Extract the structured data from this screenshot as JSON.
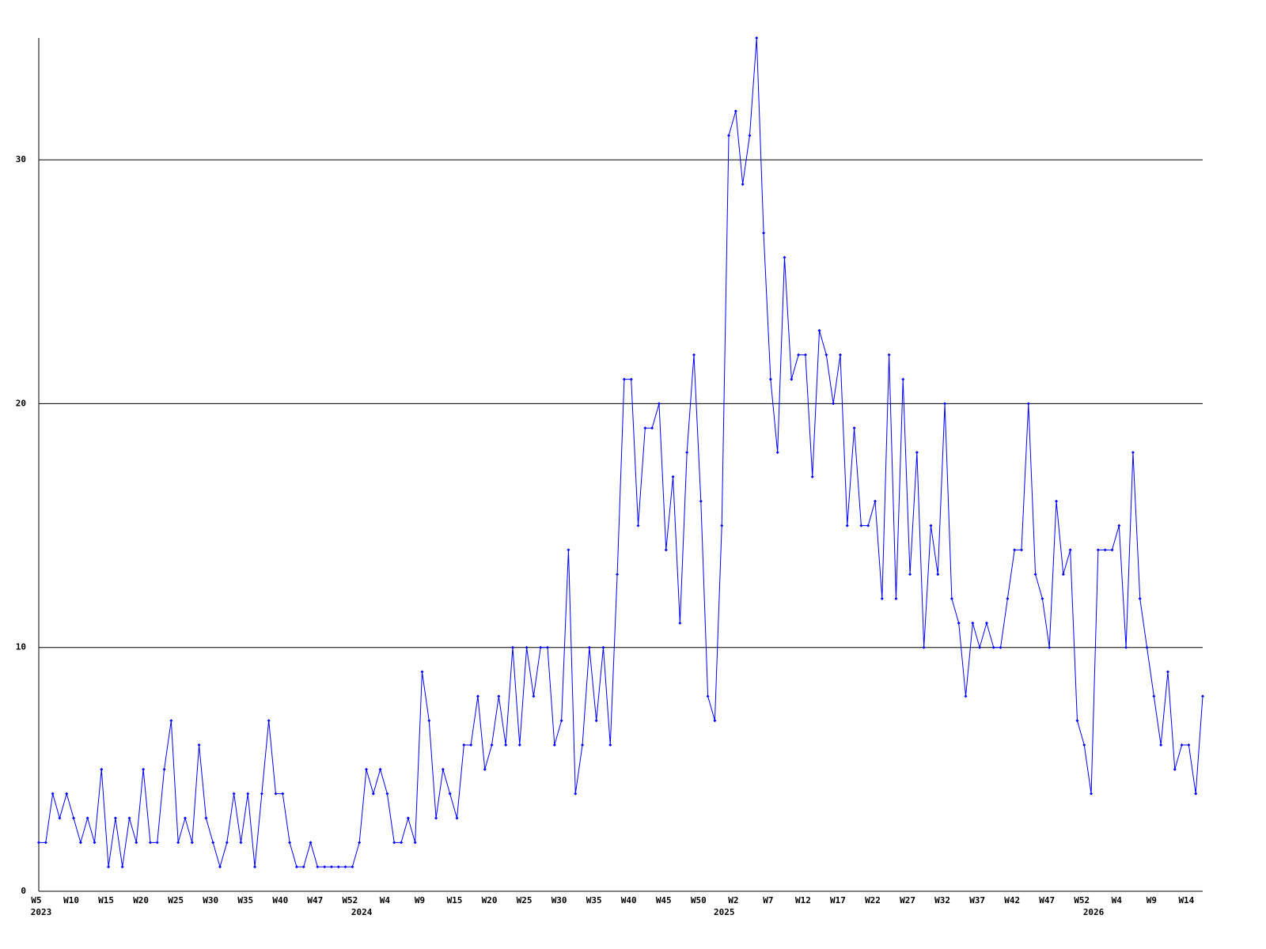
{
  "chart_data": {
    "type": "line",
    "categories": [
      "W5",
      null,
      null,
      null,
      null,
      "W10",
      null,
      null,
      null,
      null,
      "W15",
      null,
      null,
      null,
      null,
      "W20",
      null,
      null,
      null,
      null,
      "W25",
      null,
      null,
      null,
      null,
      "W30",
      null,
      null,
      null,
      null,
      "W35",
      null,
      null,
      null,
      null,
      "W40",
      null,
      null,
      null,
      null,
      "W47",
      null,
      null,
      null,
      null,
      "W52",
      null,
      null,
      null,
      null,
      "W4",
      null,
      null,
      null,
      null,
      "W9",
      null,
      null,
      null,
      null,
      "W15",
      null,
      null,
      null,
      null,
      "W20",
      null,
      null,
      null,
      null,
      "W25",
      null,
      null,
      null,
      null,
      "W30",
      null,
      null,
      null,
      null,
      "W35",
      null,
      null,
      null,
      null,
      "W40",
      null,
      null,
      null,
      null,
      "W45",
      null,
      null,
      null,
      null,
      "W50",
      null,
      null,
      null,
      null,
      "W2",
      null,
      null,
      null,
      null,
      "W7",
      null,
      null,
      null,
      null,
      "W12",
      null,
      null,
      null,
      null,
      "W17",
      null,
      null,
      null,
      null,
      "W22",
      null,
      null,
      null,
      null,
      "W27",
      null,
      null,
      null,
      null,
      "W32",
      null,
      null,
      null,
      null,
      "W37",
      null,
      null,
      null,
      null,
      "W42",
      null,
      null,
      null,
      null,
      "W47",
      null,
      null,
      null,
      null,
      "W52",
      null,
      null,
      null,
      null,
      "W4",
      null,
      null,
      null,
      null,
      "W9",
      null,
      null,
      null,
      null,
      "W14",
      null,
      null
    ],
    "x_group_labels": [
      "2023",
      null,
      null,
      null,
      null,
      null,
      null,
      null,
      null,
      null,
      null,
      null,
      null,
      null,
      null,
      null,
      null,
      null,
      null,
      null,
      null,
      null,
      null,
      null,
      null,
      null,
      null,
      null,
      null,
      null,
      null,
      null,
      null,
      null,
      null,
      null,
      null,
      null,
      null,
      null,
      null,
      null,
      null,
      null,
      null,
      null,
      "2024",
      null,
      null,
      null,
      null,
      null,
      null,
      null,
      null,
      null,
      null,
      null,
      null,
      null,
      null,
      null,
      null,
      null,
      null,
      null,
      null,
      null,
      null,
      null,
      null,
      null,
      null,
      null,
      null,
      null,
      null,
      null,
      null,
      null,
      null,
      null,
      null,
      null,
      null,
      null,
      null,
      null,
      null,
      null,
      null,
      null,
      null,
      null,
      null,
      null,
      null,
      null,
      "2025",
      null,
      null,
      null,
      null,
      null,
      null,
      null,
      null,
      null,
      null,
      null,
      null,
      null,
      null,
      null,
      null,
      null,
      null,
      null,
      null,
      null,
      null,
      null,
      null,
      null,
      null,
      null,
      null,
      null,
      null,
      null,
      null,
      null,
      null,
      null,
      null,
      null,
      null,
      null,
      null,
      null,
      null,
      null,
      null,
      null,
      null,
      null,
      null,
      null,
      null,
      null,
      null,
      "2026",
      null,
      null,
      null,
      null,
      null,
      null,
      null,
      null,
      null,
      null,
      null,
      null,
      null,
      null,
      null,
      null
    ],
    "series": [
      {
        "color": "#0000ff",
        "values": [
          2,
          2,
          4,
          3,
          4,
          3,
          2,
          3,
          2,
          5,
          1,
          3,
          1,
          3,
          2,
          5,
          2,
          2,
          5,
          7,
          2,
          3,
          2,
          6,
          3,
          2,
          1,
          2,
          4,
          2,
          4,
          1,
          4,
          7,
          4,
          4,
          2,
          1,
          1,
          2,
          1,
          1,
          1,
          1,
          1,
          1,
          2,
          5,
          4,
          5,
          4,
          2,
          2,
          3,
          2,
          9,
          7,
          3,
          5,
          4,
          3,
          6,
          6,
          8,
          5,
          6,
          8,
          6,
          10,
          6,
          10,
          8,
          10,
          10,
          6,
          7,
          14,
          4,
          6,
          10,
          7,
          10,
          6,
          13,
          21,
          21,
          15,
          19,
          19,
          20,
          14,
          17,
          11,
          18,
          22,
          16,
          8,
          7,
          15,
          31,
          32,
          29,
          31,
          35,
          27,
          21,
          18,
          26,
          21,
          22,
          22,
          17,
          23,
          22,
          20,
          22,
          15,
          19,
          15,
          15,
          16,
          12,
          22,
          12,
          21,
          13,
          18,
          10,
          15,
          13,
          20,
          12,
          11,
          8,
          11,
          10,
          11,
          10,
          10,
          12,
          14,
          14,
          20,
          13,
          12,
          10,
          16,
          13,
          14,
          7,
          6,
          4,
          14,
          14,
          14,
          15,
          10,
          18,
          12,
          10,
          8,
          6,
          9,
          5,
          6,
          6,
          4,
          8
        ]
      }
    ],
    "ylim": [
      0,
      35
    ],
    "yticks": [
      0,
      10,
      20,
      30
    ],
    "grid": true
  }
}
